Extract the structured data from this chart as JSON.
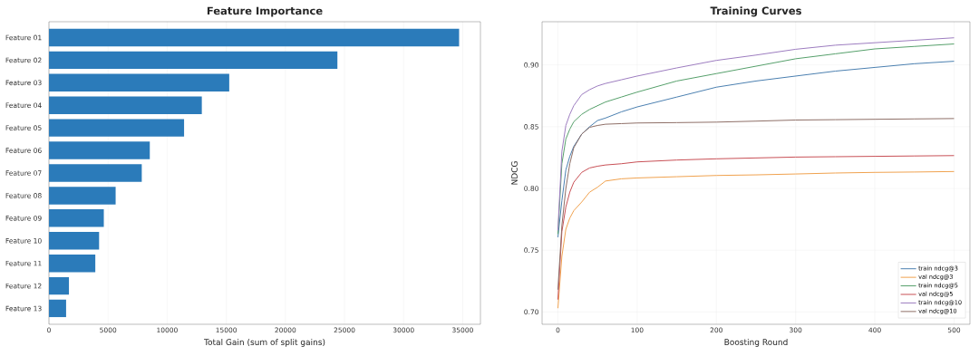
{
  "chart_data": [
    {
      "type": "bar",
      "orientation": "horizontal",
      "title": "Feature Importance",
      "xlabel": "Total Gain (sum of split gains)",
      "categories": [
        "Feature 01",
        "Feature 02",
        "Feature 03",
        "Feature 04",
        "Feature 05",
        "Feature 06",
        "Feature 07",
        "Feature 08",
        "Feature 09",
        "Feature 10",
        "Feature 11",
        "Feature 12",
        "Feature 13"
      ],
      "values": [
        34700,
        24400,
        15250,
        12930,
        11430,
        8530,
        7850,
        5640,
        4640,
        4240,
        3920,
        1690,
        1450
      ],
      "color": "#2b7bba",
      "xlim": [
        0,
        36500
      ],
      "xticks": [
        0,
        5000,
        10000,
        15000,
        20000,
        25000,
        30000,
        35000
      ],
      "grid": "x"
    },
    {
      "type": "line",
      "title": "Training Curves",
      "xlabel": "Boosting Round",
      "ylabel": "NDCG",
      "x": [
        0,
        5,
        10,
        15,
        20,
        30,
        40,
        50,
        60,
        80,
        100,
        150,
        200,
        250,
        300,
        350,
        400,
        450,
        500
      ],
      "series": [
        {
          "name": "train ndcg@3",
          "color": "#4a7fb0",
          "values": [
            0.7605,
            0.79,
            0.815,
            0.826,
            0.834,
            0.844,
            0.85,
            0.855,
            0.857,
            0.862,
            0.866,
            0.874,
            0.882,
            0.887,
            0.891,
            0.895,
            0.898,
            0.901,
            0.903
          ]
        },
        {
          "name": "val ndcg@3",
          "color": "#f0a24e",
          "values": [
            0.703,
            0.745,
            0.767,
            0.776,
            0.782,
            0.789,
            0.797,
            0.801,
            0.806,
            0.8078,
            0.8085,
            0.8095,
            0.8105,
            0.811,
            0.8117,
            0.8125,
            0.813,
            0.8133,
            0.8137
          ]
        },
        {
          "name": "train ndcg@5",
          "color": "#55a06a",
          "values": [
            0.763,
            0.82,
            0.84,
            0.848,
            0.854,
            0.86,
            0.864,
            0.867,
            0.87,
            0.874,
            0.878,
            0.887,
            0.893,
            0.899,
            0.905,
            0.909,
            0.913,
            0.915,
            0.917
          ]
        },
        {
          "name": "val ndcg@5",
          "color": "#c84f55",
          "values": [
            0.71,
            0.765,
            0.785,
            0.797,
            0.805,
            0.813,
            0.8166,
            0.818,
            0.819,
            0.82,
            0.8215,
            0.823,
            0.824,
            0.8247,
            0.8254,
            0.8257,
            0.826,
            0.8263,
            0.8266
          ]
        },
        {
          "name": "train ndcg@10",
          "color": "#9d7cc0",
          "values": [
            0.766,
            0.83,
            0.851,
            0.86,
            0.867,
            0.876,
            0.88,
            0.883,
            0.885,
            0.888,
            0.891,
            0.8976,
            0.9037,
            0.908,
            0.9127,
            0.916,
            0.918,
            0.92,
            0.922
          ]
        },
        {
          "name": "val ndcg@10",
          "color": "#8e6e66",
          "values": [
            0.718,
            0.77,
            0.8,
            0.82,
            0.833,
            0.844,
            0.8495,
            0.851,
            0.852,
            0.8525,
            0.853,
            0.8533,
            0.8537,
            0.8545,
            0.8554,
            0.8557,
            0.856,
            0.8563,
            0.8566
          ]
        }
      ],
      "xlim": [
        -20,
        520
      ],
      "ylim": [
        0.69,
        0.935
      ],
      "xticks": [
        0,
        100,
        200,
        300,
        400,
        500
      ],
      "yticks": [
        {
          "value": 0.7,
          "label": "0.70"
        },
        0.75,
        {
          "value": 0.8,
          "label": "0.80"
        },
        0.85,
        {
          "value": 0.9,
          "label": "0.90"
        }
      ],
      "grid": true,
      "legend": "bottom right"
    }
  ]
}
